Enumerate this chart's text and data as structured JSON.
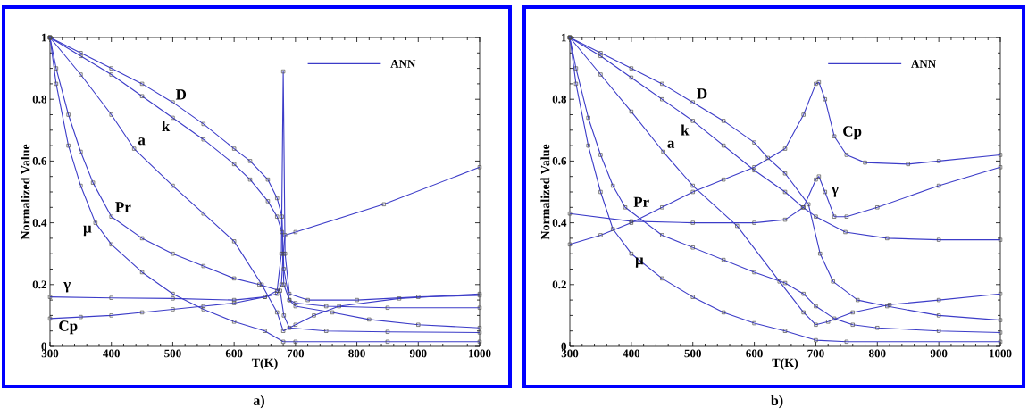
{
  "chart_data": [
    {
      "type": "line",
      "xlabel": "T(K)",
      "ylabel": "Normalized Value",
      "xlim": [
        300,
        1000
      ],
      "ylim": [
        0,
        1
      ],
      "xticks": [
        300,
        400,
        500,
        600,
        700,
        800,
        900,
        1000
      ],
      "yticks": [
        0,
        0.2,
        0.4,
        0.6,
        0.8,
        1
      ],
      "marker": "square",
      "title": "a)",
      "annotations": [
        "ANN"
      ],
      "series": [
        {
          "name": "D",
          "color": "#3c3cc8",
          "x": [
            300,
            350,
            400,
            450,
            500,
            550,
            600,
            626,
            655,
            670,
            678,
            681,
            690,
            700,
            760,
            820,
            900,
            1000
          ],
          "values": [
            1,
            0.95,
            0.9,
            0.85,
            0.79,
            0.72,
            0.64,
            0.6,
            0.54,
            0.48,
            0.42,
            0.25,
            0.15,
            0.13,
            0.11,
            0.087,
            0.07,
            0.06
          ]
        },
        {
          "name": "k",
          "color": "#3c3cc8",
          "x": [
            300,
            350,
            400,
            450,
            500,
            550,
            600,
            626,
            655,
            670,
            678,
            681,
            690,
            700,
            750,
            850,
            1000
          ],
          "values": [
            1,
            0.94,
            0.88,
            0.81,
            0.74,
            0.67,
            0.59,
            0.54,
            0.47,
            0.42,
            0.37,
            0.2,
            0.15,
            0.14,
            0.13,
            0.125,
            0.125
          ]
        },
        {
          "name": "a",
          "color": "#3c3cc8",
          "x": [
            300,
            350,
            400,
            437,
            500,
            550,
            600,
            645,
            670,
            680,
            700,
            730,
            771,
            869,
            1000
          ],
          "values": [
            1,
            0.88,
            0.75,
            0.64,
            0.52,
            0.43,
            0.34,
            0.2,
            0.11,
            0.05,
            0.07,
            0.1,
            0.13,
            0.155,
            0.17
          ]
        },
        {
          "name": "Pr",
          "color": "#3c3cc8",
          "x": [
            300,
            310,
            330,
            350,
            370,
            400,
            450,
            500,
            550,
            600,
            641,
            675,
            681,
            690,
            750,
            850,
            1000
          ],
          "values": [
            1,
            0.9,
            0.75,
            0.63,
            0.53,
            0.42,
            0.35,
            0.3,
            0.26,
            0.22,
            0.2,
            0.18,
            0.1,
            0.06,
            0.05,
            0.047,
            0.045
          ]
        },
        {
          "name": "μ",
          "color": "#3c3cc8",
          "x": [
            300,
            310,
            330,
            350,
            374,
            400,
            450,
            500,
            550,
            600,
            650,
            680,
            700,
            850,
            1000
          ],
          "values": [
            1,
            0.85,
            0.65,
            0.52,
            0.4,
            0.33,
            0.24,
            0.17,
            0.12,
            0.08,
            0.05,
            0.015,
            0.015,
            0.015,
            0.015
          ]
        },
        {
          "name": "γ",
          "color": "#3c3cc8",
          "x": [
            300,
            400,
            500,
            600,
            650,
            670,
            677,
            680,
            683,
            700,
            844,
            1000
          ],
          "values": [
            0.16,
            0.157,
            0.155,
            0.15,
            0.16,
            0.17,
            0.2,
            0.3,
            0.36,
            0.37,
            0.46,
            0.58
          ]
        },
        {
          "name": "Cp",
          "color": "#3c3cc8",
          "x": [
            300,
            350,
            400,
            450,
            500,
            550,
            600,
            650,
            670,
            677,
            680,
            683,
            690,
            720,
            800,
            900,
            1000
          ],
          "values": [
            0.09,
            0.095,
            0.1,
            0.11,
            0.12,
            0.13,
            0.14,
            0.16,
            0.18,
            0.3,
            0.89,
            0.3,
            0.17,
            0.15,
            0.15,
            0.16,
            0.165
          ]
        }
      ]
    },
    {
      "type": "line",
      "xlabel": "T(K)",
      "ylabel": "Normalized Value",
      "xlim": [
        300,
        1000
      ],
      "ylim": [
        0,
        1
      ],
      "xticks": [
        300,
        400,
        500,
        600,
        700,
        800,
        900,
        1000
      ],
      "yticks": [
        0,
        0.2,
        0.4,
        0.6,
        0.8,
        1
      ],
      "marker": "square",
      "title": "b)",
      "annotations": [
        "ANN"
      ],
      "series": [
        {
          "name": "D",
          "color": "#3c3cc8",
          "x": [
            300,
            350,
            400,
            450,
            500,
            550,
            600,
            622,
            650,
            688,
            707,
            728,
            768,
            816,
            900,
            1000
          ],
          "values": [
            1,
            0.95,
            0.9,
            0.85,
            0.79,
            0.73,
            0.66,
            0.61,
            0.56,
            0.46,
            0.3,
            0.21,
            0.15,
            0.13,
            0.1,
            0.085
          ]
        },
        {
          "name": "k",
          "color": "#3c3cc8",
          "x": [
            300,
            350,
            400,
            450,
            500,
            550,
            600,
            650,
            679,
            700,
            748,
            816,
            900,
            1000
          ],
          "values": [
            1,
            0.94,
            0.87,
            0.8,
            0.73,
            0.65,
            0.57,
            0.5,
            0.45,
            0.42,
            0.37,
            0.35,
            0.345,
            0.345
          ]
        },
        {
          "name": "a",
          "color": "#3c3cc8",
          "x": [
            300,
            350,
            400,
            452,
            500,
            572,
            641,
            680,
            700,
            720,
            760,
            820,
            900,
            1000
          ],
          "values": [
            1,
            0.88,
            0.76,
            0.63,
            0.52,
            0.39,
            0.21,
            0.11,
            0.07,
            0.08,
            0.11,
            0.135,
            0.15,
            0.17
          ]
        },
        {
          "name": "Pr",
          "color": "#3c3cc8",
          "x": [
            300,
            310,
            330,
            350,
            370,
            390,
            450,
            500,
            550,
            600,
            650,
            680,
            700,
            730,
            760,
            800,
            900,
            1000
          ],
          "values": [
            1,
            0.9,
            0.74,
            0.62,
            0.52,
            0.45,
            0.36,
            0.32,
            0.28,
            0.24,
            0.205,
            0.17,
            0.13,
            0.09,
            0.07,
            0.06,
            0.05,
            0.045
          ]
        },
        {
          "name": "μ",
          "color": "#3c3cc8",
          "x": [
            300,
            310,
            330,
            350,
            370,
            400,
            450,
            500,
            550,
            600,
            650,
            700,
            750,
            1000
          ],
          "values": [
            1,
            0.85,
            0.65,
            0.5,
            0.38,
            0.3,
            0.22,
            0.16,
            0.11,
            0.075,
            0.05,
            0.02,
            0.015,
            0.015
          ]
        },
        {
          "name": "γ",
          "color": "#3c3cc8",
          "x": [
            300,
            400,
            500,
            600,
            650,
            680,
            700,
            705,
            715,
            730,
            750,
            800,
            900,
            1000
          ],
          "values": [
            0.43,
            0.405,
            0.4,
            0.4,
            0.41,
            0.45,
            0.54,
            0.55,
            0.5,
            0.42,
            0.42,
            0.45,
            0.52,
            0.58
          ]
        },
        {
          "name": "Cp",
          "color": "#3c3cc8",
          "x": [
            300,
            350,
            400,
            450,
            500,
            550,
            600,
            650,
            680,
            700,
            705,
            715,
            730,
            750,
            780,
            850,
            900,
            1000
          ],
          "values": [
            0.33,
            0.36,
            0.4,
            0.45,
            0.5,
            0.54,
            0.58,
            0.64,
            0.75,
            0.85,
            0.855,
            0.8,
            0.68,
            0.62,
            0.595,
            0.59,
            0.6,
            0.62
          ]
        }
      ]
    }
  ]
}
